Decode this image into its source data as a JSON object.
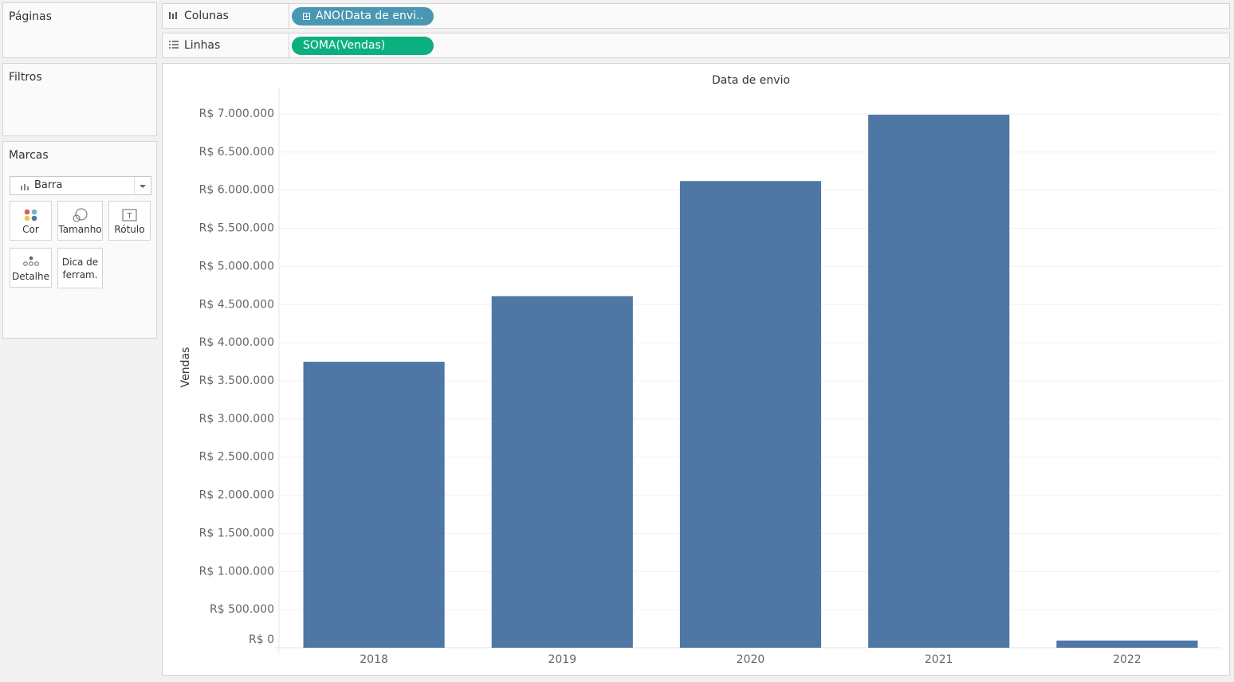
{
  "ui": {
    "pages": "Páginas",
    "filters": "Filtros",
    "marks": "Marcas",
    "mark_type": "Barra",
    "mark_buttons": [
      "Cor",
      "Tamanho",
      "Rótulo",
      "Detalhe",
      "Dica de ferram."
    ],
    "columns": {
      "label": "Colunas",
      "pill": "ANO(Data de envi.."
    },
    "rows": {
      "label": "Linhas",
      "pill": "SOMA(Vendas)"
    }
  },
  "chart_data": {
    "type": "bar",
    "title": "Data de envio",
    "y_label": "Vendas",
    "categories": [
      "2018",
      "2019",
      "2020",
      "2021",
      "2022"
    ],
    "values": [
      3750000,
      4610000,
      6120000,
      6990000,
      94000
    ],
    "color": "#4e77a5",
    "ylim": [
      0,
      7000000
    ],
    "yticks": [
      {
        "value": 0,
        "label": "R$ 0"
      },
      {
        "value": 500000,
        "label": "R$ 500.000"
      },
      {
        "value": 1000000,
        "label": "R$ 1.000.000"
      },
      {
        "value": 1500000,
        "label": "R$ 1.500.000"
      },
      {
        "value": 2000000,
        "label": "R$ 2.000.000"
      },
      {
        "value": 2500000,
        "label": "R$ 2.500.000"
      },
      {
        "value": 3000000,
        "label": "R$ 3.000.000"
      },
      {
        "value": 3500000,
        "label": "R$ 3.500.000"
      },
      {
        "value": 4000000,
        "label": "R$ 4.000.000"
      },
      {
        "value": 4500000,
        "label": "R$ 4.500.000"
      },
      {
        "value": 5000000,
        "label": "R$ 5.000.000"
      },
      {
        "value": 5500000,
        "label": "R$ 5.500.000"
      },
      {
        "value": 6000000,
        "label": "R$ 6.000.000"
      },
      {
        "value": 6500000,
        "label": "R$ 6.500.000"
      },
      {
        "value": 7000000,
        "label": "R$ 7.000.000"
      }
    ],
    "grid": true
  }
}
